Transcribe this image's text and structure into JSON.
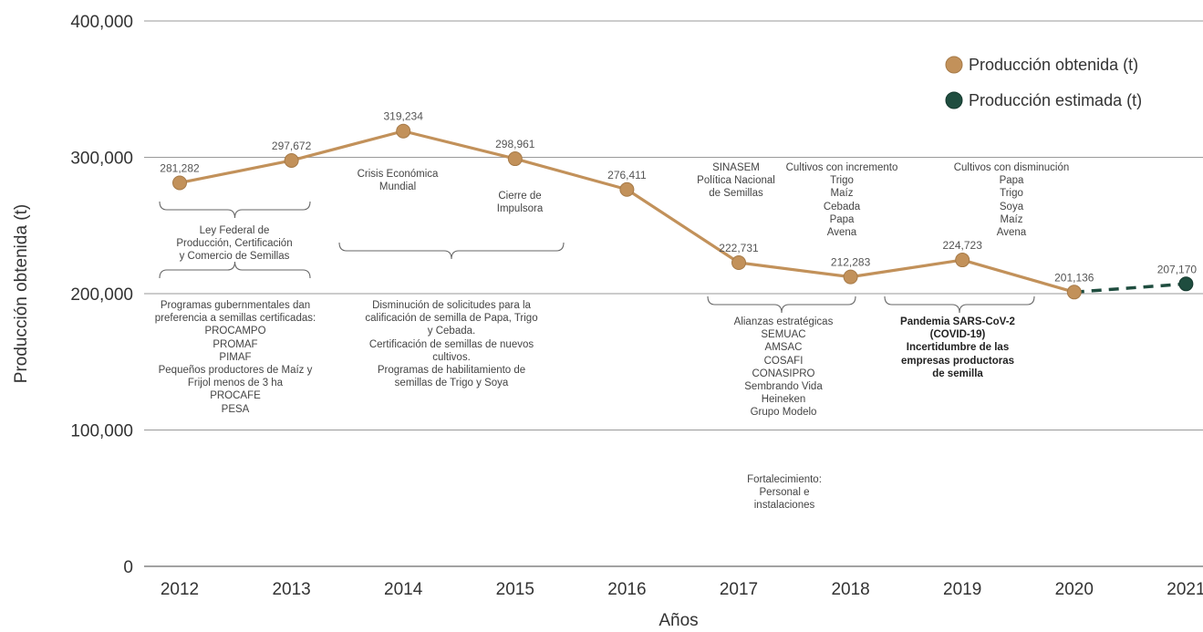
{
  "chart_data": {
    "type": "line",
    "xlabel": "Años",
    "ylabel": "Producción obtenida (t)",
    "ylim": [
      0,
      400000
    ],
    "yticks": [
      "0",
      "100,000",
      "200,000",
      "300,000",
      "400,000"
    ],
    "grid": true,
    "legend_position": "top-right",
    "categories": [
      "2012",
      "2013",
      "2014",
      "2015",
      "2016",
      "2017",
      "2018",
      "2019",
      "2020",
      "2021"
    ],
    "series": [
      {
        "name": "Producción obtenida (t)",
        "color": "#C2915A",
        "x": [
          "2012",
          "2013",
          "2014",
          "2015",
          "2016",
          "2017",
          "2018",
          "2019",
          "2020"
        ],
        "values": [
          281282,
          297672,
          319234,
          298961,
          276411,
          222731,
          212283,
          224723,
          201136
        ],
        "labels": [
          "281,282",
          "297,672",
          "319,234",
          "298,961",
          "276,411",
          "222,731",
          "212,283",
          "224,723",
          "201,136"
        ]
      },
      {
        "name": "Producción estimada (t)",
        "color": "#1F4D3F",
        "x": [
          "2020",
          "2021"
        ],
        "values": [
          201136,
          207170
        ],
        "labels": [
          "",
          "207,170"
        ]
      }
    ],
    "annotations": {
      "ley_federal": "Ley Federal de\nProducción, Certificación\ny Comercio de Semillas",
      "programas": "Programas gubernmentales dan\npreferencia a semillas certificadas:\nPROCAMPO\nPROMAF\nPIMAF\nPequeños productores de Maíz y\nFrijol menos de 3 ha\nPROCAFE\nPESA",
      "crisis": "Crisis Económica\nMundial",
      "cierre": "Cierre de\nImpulsora",
      "disminucion_solicitudes": "Disminución de solicitudes para la\ncalificación de semilla de Papa, Trigo\ny Cebada.\nCertificación de semillas de nuevos\ncultivos.\nProgramas de habilitamiento de\nsemillas de Trigo y Soya",
      "sinasem": "SINASEM\nPolítica Nacional\nde Semillas",
      "cultivos_incremento": "Cultivos con incremento\nTrigo\nMaíz\nCebada\nPapa\nAvena",
      "cultivos_disminucion": "Cultivos con disminución\nPapa\nTrigo\nSoya\nMaíz\nAvena",
      "alianzas": "Alianzas estratégicas\nSEMUAC\nAMSAC\nCOSAFI\nCONASIPRO\nSembrando Vida\nHeineken\nGrupo Modelo",
      "pandemia": "Pandemia SARS-CoV-2\n(COVID-19)\nIncertidumbre de las\nempresas productoras\nde semilla",
      "fortalecimiento": "Fortalecimiento:\nPersonal e\ninstalaciones"
    }
  }
}
